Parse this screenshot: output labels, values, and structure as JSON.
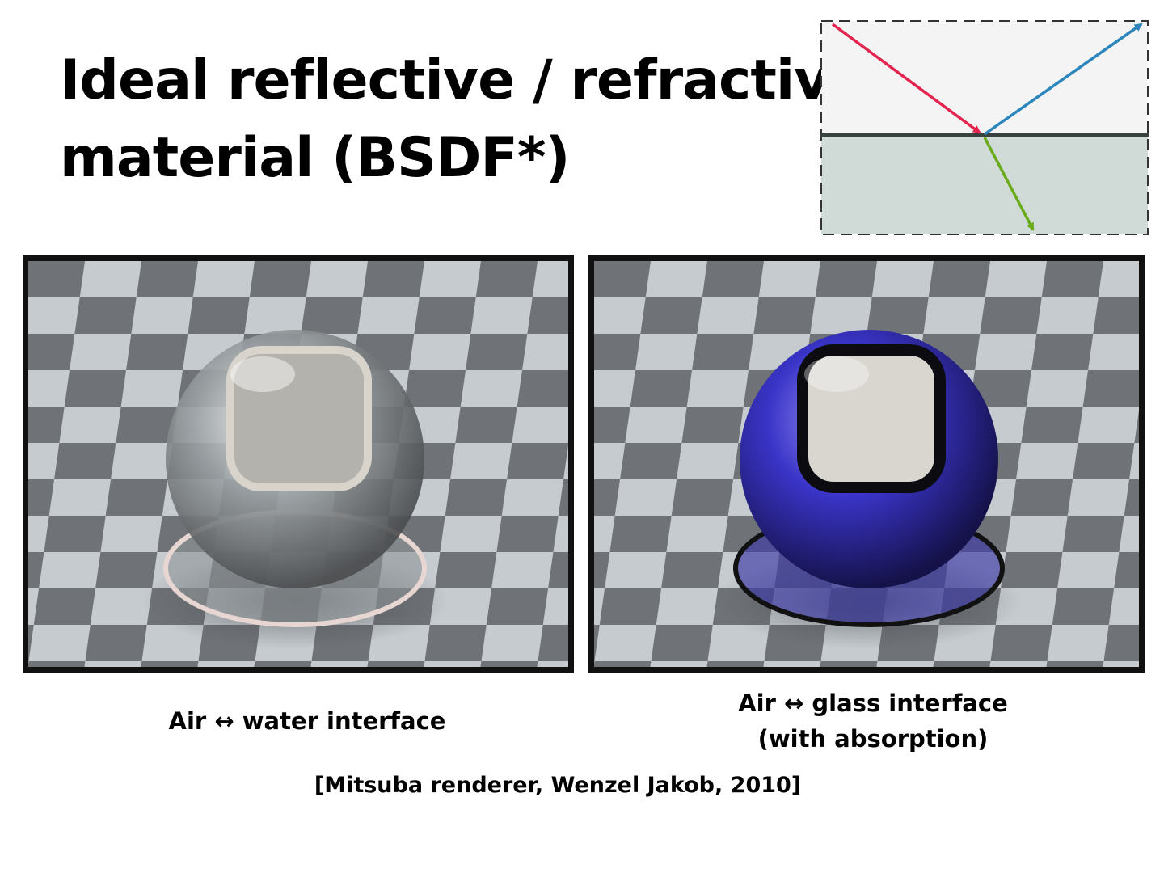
{
  "slide": {
    "title_line1": "Ideal reflective / refractive",
    "title_line2": "material (BSDF*)"
  },
  "diagram": {
    "colors": {
      "incident_ray": "#e4244f",
      "reflected_ray": "#2b86bd",
      "refracted_ray": "#6aab1c",
      "upper_medium": "#f4f4f4",
      "lower_medium": "#d0dad6",
      "interface": "#39413f"
    }
  },
  "renders": {
    "left": {
      "caption": "Air ↔ water interface",
      "tint": "#c8cdd0"
    },
    "right": {
      "caption_line1": "Air ↔ glass interface",
      "caption_line2": "(with absorption)",
      "tint": "#3a34c8"
    }
  },
  "citation": "[Mitsuba renderer, Wenzel Jakob, 2010]"
}
